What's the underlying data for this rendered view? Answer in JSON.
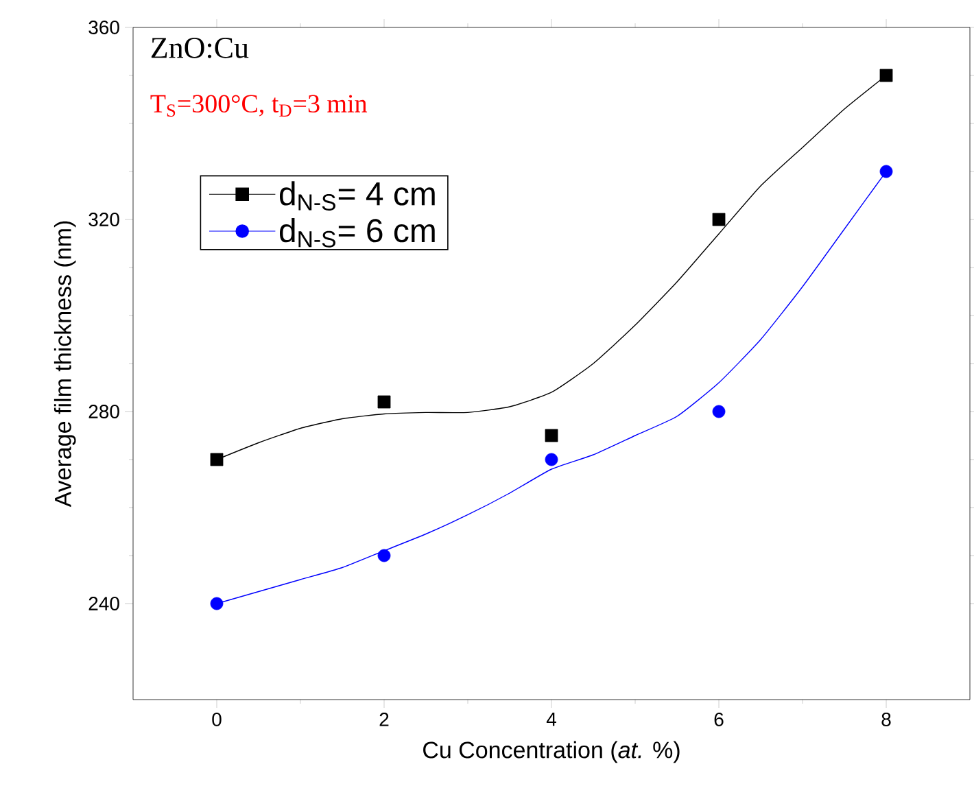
{
  "chart_data": {
    "type": "scatter",
    "xlabel": "Cu Concentration (*at.* %)",
    "ylabel": "Average film thickness (nm)",
    "annotations": [
      "ZnO:Cu",
      "T$_{S}$=300°C, t$_{D}$=3 min"
    ],
    "xlim": [
      -1,
      9
    ],
    "xticks": [
      0,
      2,
      4,
      6,
      8
    ],
    "ylim": [
      220,
      360
    ],
    "yticks": [
      240,
      280,
      320,
      360
    ],
    "legend": "top left",
    "grid": false,
    "series": [
      {
        "name": "d$_{N-S}$= 4 cm",
        "color": "#000000",
        "marker": "square",
        "x": [
          0,
          2,
          4,
          6,
          8
        ],
        "values": [
          270,
          282,
          275,
          320,
          350
        ]
      },
      {
        "name": "d$_{N-S}$= 6 cm",
        "color": "#0000ff",
        "marker": "circle",
        "x": [
          0,
          2,
          4,
          6,
          8
        ],
        "values": [
          240,
          250,
          270,
          280,
          330
        ]
      },
      {
        "type": "line",
        "color": "#000000",
        "marker": "none",
        "x": [
          0,
          0.5,
          1,
          1.5,
          2,
          2.5,
          3,
          3.5,
          4,
          4.5,
          5,
          5.5,
          6,
          6.5,
          7,
          7.5,
          8
        ],
        "values": [
          270,
          273.5,
          276.5,
          278.5,
          279.5,
          279.8,
          279.8,
          281,
          284,
          290,
          298,
          307,
          317,
          327,
          335,
          343,
          350
        ]
      },
      {
        "type": "line",
        "color": "#0000ff",
        "marker": "none",
        "x": [
          0,
          0.5,
          1,
          1.5,
          2,
          2.5,
          3,
          3.5,
          4,
          4.5,
          5,
          5.5,
          6,
          6.5,
          7,
          7.5,
          8
        ],
        "values": [
          240,
          242.5,
          245,
          247.5,
          251,
          254.5,
          258.5,
          263,
          268,
          271,
          275,
          279,
          286,
          295,
          306,
          318,
          330
        ]
      }
    ]
  }
}
